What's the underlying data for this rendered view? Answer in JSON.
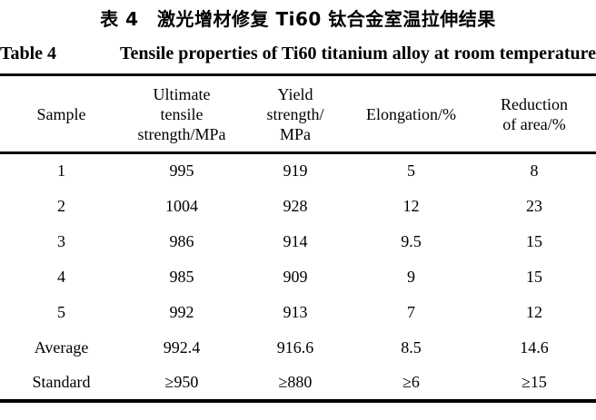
{
  "caption_zh": "表 4　激光增材修复 Ti60 钛合金室温拉伸结果",
  "caption_en": {
    "label": "Table 4",
    "text": "Tensile properties of Ti60 titanium alloy at room temperature"
  },
  "table": {
    "headers": [
      {
        "lines": [
          "Sample"
        ]
      },
      {
        "lines": [
          "Ultimate",
          "tensile",
          "strength/MPa"
        ]
      },
      {
        "lines": [
          "Yield",
          "strength/",
          "MPa"
        ]
      },
      {
        "lines": [
          "Elongation/%"
        ]
      },
      {
        "lines": [
          "Reduction",
          "of area/%"
        ]
      }
    ],
    "rows": [
      {
        "cells": [
          "1",
          "995",
          "919",
          "5",
          "8"
        ]
      },
      {
        "cells": [
          "2",
          "1004",
          "928",
          "12",
          "23"
        ]
      },
      {
        "cells": [
          "3",
          "986",
          "914",
          "9.5",
          "15"
        ]
      },
      {
        "cells": [
          "4",
          "985",
          "909",
          "9",
          "15"
        ]
      },
      {
        "cells": [
          "5",
          "992",
          "913",
          "7",
          "12"
        ]
      },
      {
        "cells": [
          "Average",
          "992.4",
          "916.6",
          "8.5",
          "14.6"
        ]
      },
      {
        "cells": [
          "Standard",
          "≥950",
          "≥880",
          "≥6",
          "≥15"
        ]
      }
    ]
  },
  "colors": {
    "background": "#ffffff",
    "text": "#000000",
    "rule": "#000000"
  }
}
